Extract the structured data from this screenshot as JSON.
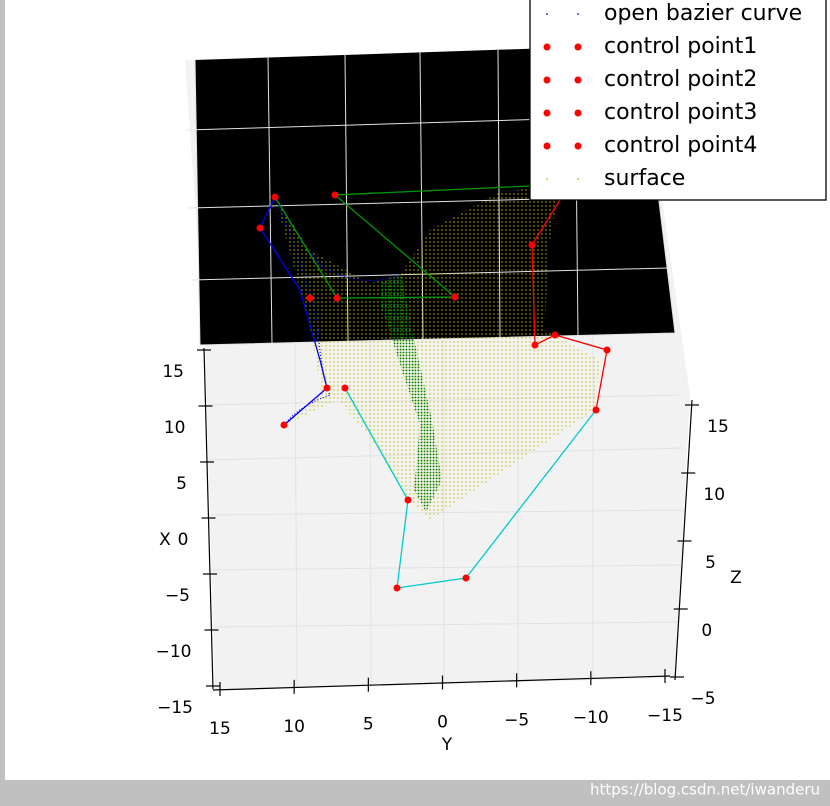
{
  "chart_data": {
    "type": "surface3d",
    "x_label": "X",
    "y_label": "Y",
    "z_label": "Z",
    "xlim": [
      -15,
      15
    ],
    "xticks": [
      {
        "value": -15,
        "label": "−15"
      },
      {
        "value": -10,
        "label": "−10"
      },
      {
        "value": -5,
        "label": "−5"
      },
      0,
      5,
      10,
      15
    ],
    "ylim": [
      -15,
      15
    ],
    "yticks": [
      {
        "value": -15,
        "label": "−15"
      },
      {
        "value": -10,
        "label": "−10"
      },
      {
        "value": -5,
        "label": "−5"
      },
      0,
      5,
      10,
      15
    ],
    "zlim": [
      -5,
      15
    ],
    "zticks": [
      {
        "value": -5,
        "label": "−5"
      },
      0,
      5,
      10,
      15
    ],
    "series": [
      {
        "name": "open bazier curve",
        "color": "#0000ff",
        "marker": "dot"
      },
      {
        "name": "control point1",
        "color": "#ff0000",
        "marker": "circle"
      },
      {
        "name": "control point2",
        "color": "#ff0000",
        "marker": "circle"
      },
      {
        "name": "control point3",
        "color": "#ff0000",
        "marker": "circle"
      },
      {
        "name": "control point4",
        "color": "#ff0000",
        "marker": "circle"
      },
      {
        "name": "surface",
        "color": "#bfbf00",
        "marker": "dot"
      }
    ]
  },
  "watermark": "https://blog.csdn.net/iwanderu"
}
